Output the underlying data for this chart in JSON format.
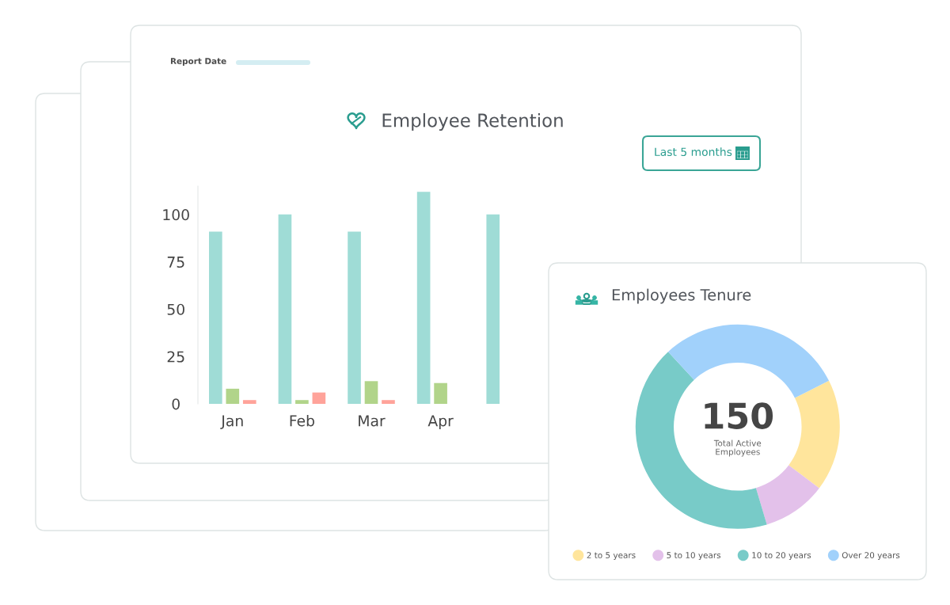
{
  "chart_data": [
    {
      "type": "bar",
      "title": "Employee Retention",
      "categories": [
        "Jan",
        "Feb",
        "Mar",
        "Apr",
        null
      ],
      "series": [
        {
          "color": "#9fdcd6",
          "values": [
            91,
            100,
            91,
            112,
            100
          ]
        },
        {
          "color": "#b1d48a",
          "values": [
            8,
            2,
            12,
            11,
            null
          ]
        },
        {
          "color": "#ffa39a",
          "values": [
            2,
            6,
            2,
            null,
            null
          ]
        }
      ],
      "ylim": [
        0,
        115
      ],
      "yticks": [
        0,
        25,
        50,
        75,
        100
      ],
      "annotations": [
        "Report Date",
        "Last 5 months"
      ]
    },
    {
      "type": "donut",
      "title": "Employees Tenure",
      "categories": [
        "2 to 5 years",
        "5 to 10 years",
        "10 to 20 years",
        "Over 20 years"
      ],
      "values": [
        17.7,
        10.1,
        42.7,
        29.5
      ],
      "colors": [
        "#ffe59c",
        "#e3c1ea",
        "#78cbc8",
        "#a1d1fb"
      ],
      "legend": "bottom",
      "annotations": [
        "150",
        "Total Active\nEmployees"
      ]
    }
  ]
}
